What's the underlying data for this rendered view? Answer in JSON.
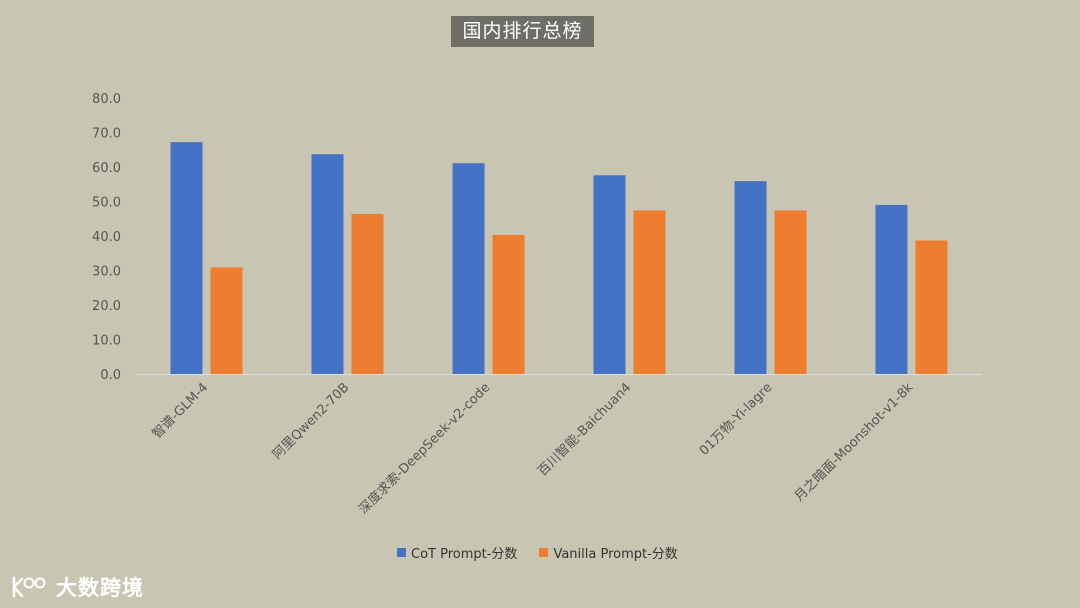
{
  "chart_data": {
    "type": "bar",
    "title": "国内排行总榜",
    "categories": [
      "智谱-GLM-4",
      "阿里Qwen2-70B",
      "深度求索-DeepSeek-v2-code",
      "百川智能-Baichuan4",
      "01万物-Yi-lagre",
      "月之暗面-Moonshot-v1-8k"
    ],
    "series": [
      {
        "name": "CoT Prompt-分数",
        "color": "#4472c4",
        "values": [
          67.2,
          63.7,
          61.1,
          57.6,
          55.9,
          49.0
        ]
      },
      {
        "name": "Vanilla Prompt-分数",
        "color": "#ed7d31",
        "values": [
          30.9,
          46.4,
          40.3,
          47.4,
          47.4,
          38.7
        ]
      }
    ],
    "ylim": [
      0,
      80
    ],
    "yticks": [
      "0.0",
      "10.0",
      "20.0",
      "30.0",
      "40.0",
      "50.0",
      "60.0",
      "70.0",
      "80.0"
    ],
    "grid": false,
    "legend_position": "bottom"
  },
  "logo": {
    "icon": "k100-logo-icon",
    "text": "大数跨境"
  }
}
